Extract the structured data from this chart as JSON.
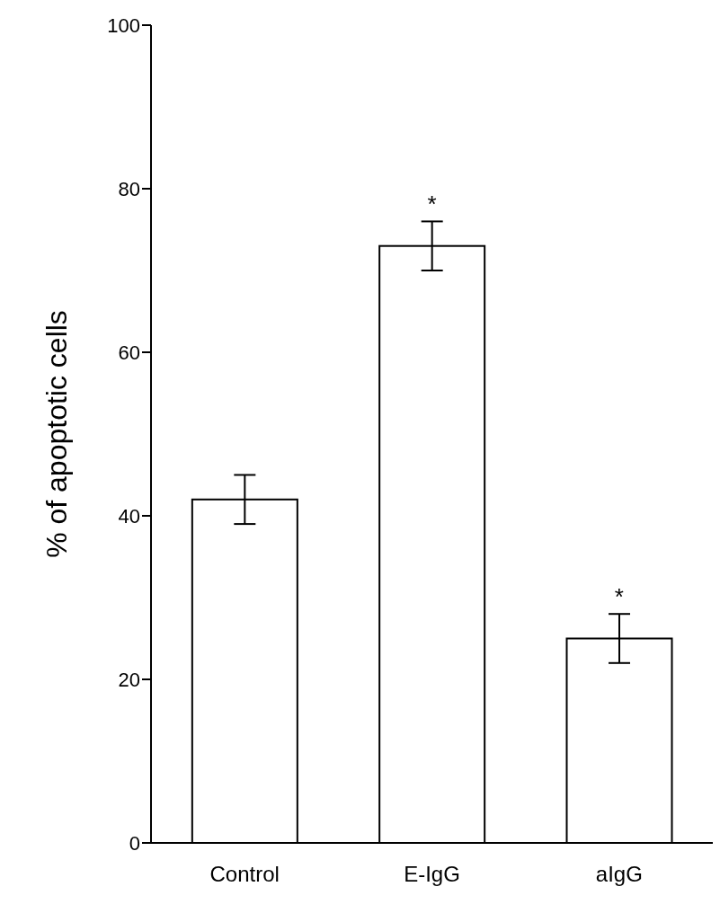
{
  "chart_data": {
    "type": "bar",
    "ylabel": "% of apoptotic cells",
    "categories": [
      "Control",
      "E-IgG",
      "aIgG"
    ],
    "values": [
      42,
      73,
      25
    ],
    "errors": [
      3,
      3,
      3
    ],
    "color": "#ffffff",
    "ylim": [
      0,
      100
    ],
    "yticks": [
      0,
      20,
      40,
      60,
      80,
      100
    ],
    "grid": false,
    "annotations": [
      {
        "text": "*",
        "x": "E-IgG",
        "y": 76
      },
      {
        "text": "*",
        "x": "aIgG",
        "y": 28
      }
    ]
  }
}
